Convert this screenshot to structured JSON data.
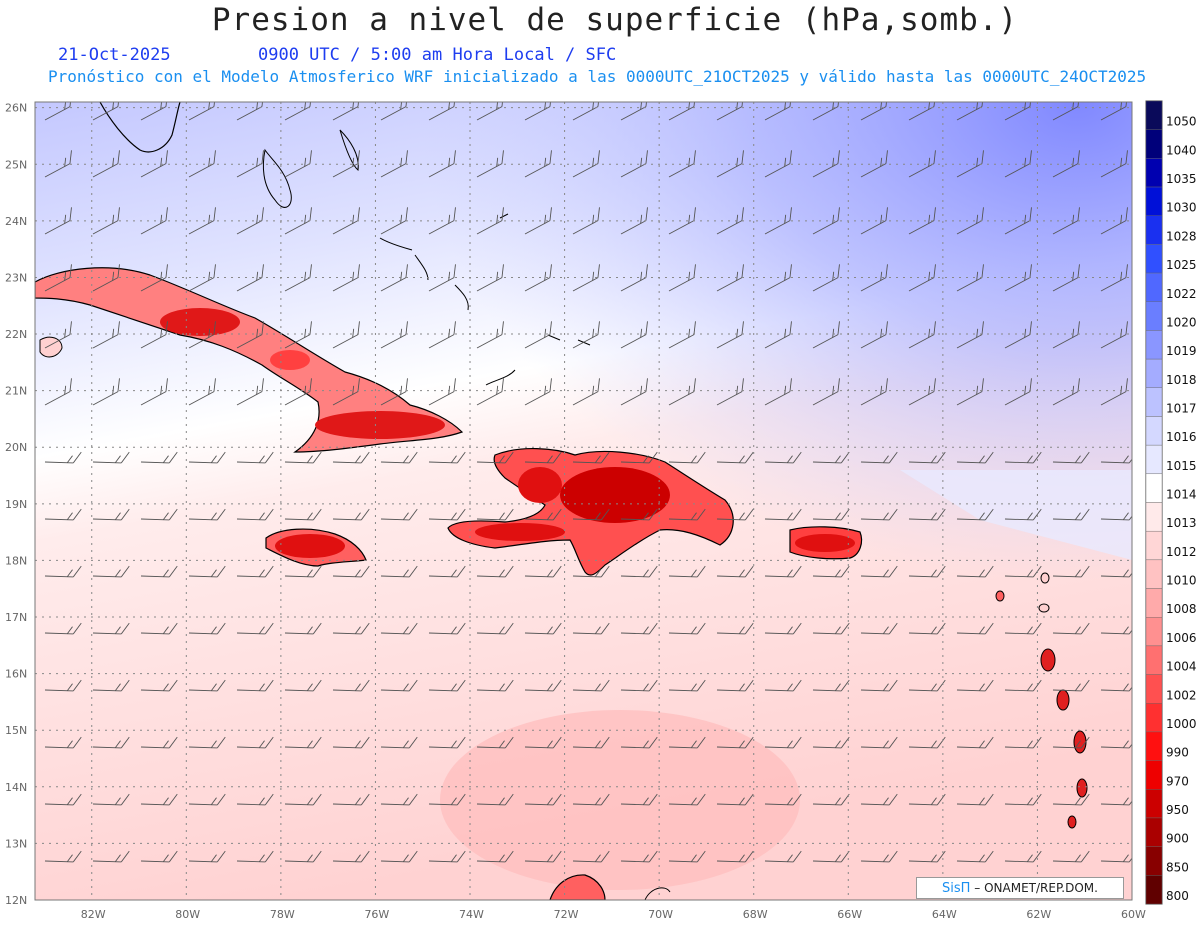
{
  "header": {
    "title": "Presion a nivel de superficie (hPa,somb.)",
    "date": "21-Oct-2025",
    "time_info": "0900 UTC / 5:00 am Hora Local / SFC",
    "model_info": "Pronóstico con el Modelo Atmosferico WRF inicializado a las 0000UTC_21OCT2025 y válido hasta las  0000UTC_24OCT2025"
  },
  "map": {
    "lat_labels": [
      "26N",
      "25N",
      "24N",
      "23N",
      "22N",
      "21N",
      "20N",
      "19N",
      "18N",
      "17N",
      "16N",
      "15N",
      "14N",
      "13N",
      "12N"
    ],
    "lon_labels": [
      "82W",
      "80W",
      "78W",
      "76W",
      "74W",
      "72W",
      "70W",
      "68W",
      "66W",
      "64W",
      "62W",
      "60W"
    ],
    "lon_range": [
      -83.2,
      -60
    ],
    "lat_range": [
      12,
      26.1
    ]
  },
  "colorbar": {
    "levels": [
      "1050",
      "1040",
      "1035",
      "1030",
      "1028",
      "1025",
      "1022",
      "1020",
      "1019",
      "1018",
      "1017",
      "1016",
      "1015",
      "1014",
      "1013",
      "1012",
      "1010",
      "1008",
      "1006",
      "1004",
      "1002",
      "1000",
      "990",
      "970",
      "950",
      "900",
      "850",
      "800"
    ],
    "colors": [
      "#0a0a5a",
      "#00007a",
      "#0000b0",
      "#0010d8",
      "#1a30f0",
      "#3050ff",
      "#5068ff",
      "#6a7eff",
      "#8a96ff",
      "#a4acff",
      "#bcc2ff",
      "#d4d8ff",
      "#e6e8ff",
      "#ffffff",
      "#ffeaea",
      "#ffd6d6",
      "#ffc2c2",
      "#ffaaaa",
      "#ff9090",
      "#ff7070",
      "#ff5050",
      "#ff3030",
      "#ff1010",
      "#ee0000",
      "#cc0000",
      "#aa0000",
      "#880000",
      "#600000"
    ]
  },
  "credit": {
    "brand": "SisΠ",
    "text": "– ONAMET/REP.DOM."
  }
}
